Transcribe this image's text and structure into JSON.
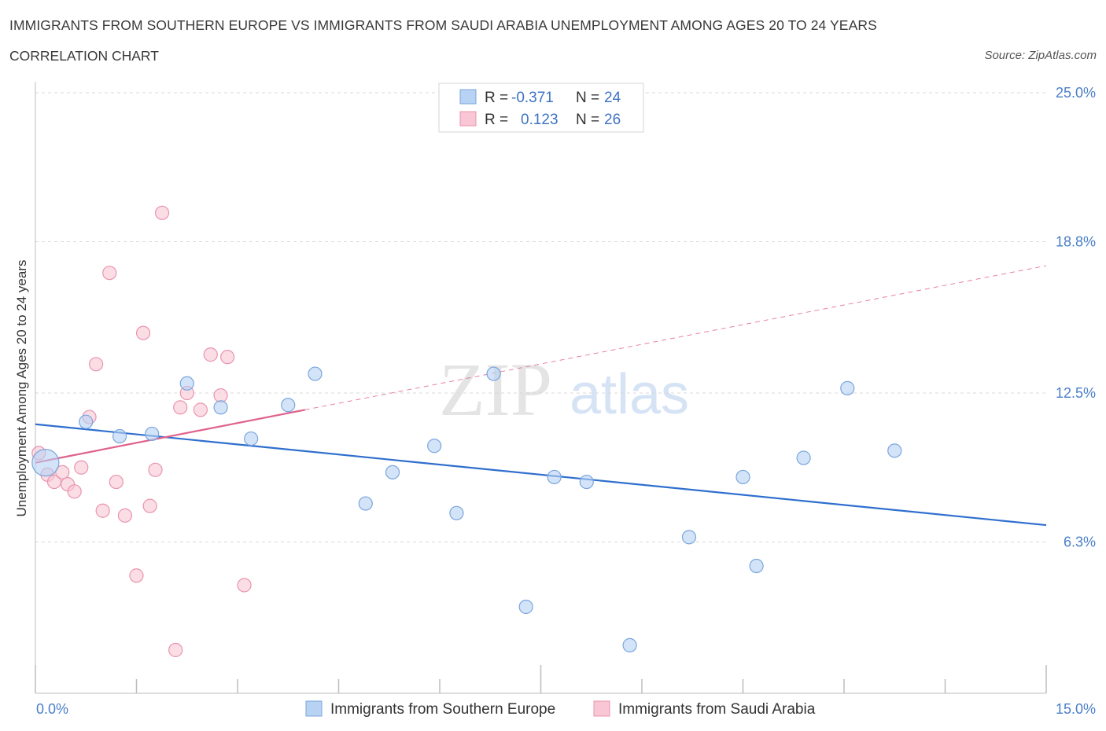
{
  "header": {
    "title": "IMMIGRANTS FROM SOUTHERN EUROPE VS IMMIGRANTS FROM SAUDI ARABIA UNEMPLOYMENT AMONG AGES 20 TO 24 YEARS",
    "subtitle": "CORRELATION CHART",
    "source": "Source: ZipAtlas.com"
  },
  "watermark": {
    "zip": "ZIP",
    "atlas": "atlas"
  },
  "colors": {
    "blue_fill": "#b8d2f3",
    "blue_stroke": "#7aa6dd",
    "blue_line": "#2f6fce",
    "pink_fill": "#f8c6d4",
    "pink_stroke": "#e994ae",
    "pink_line": "#e0628c",
    "tick_text": "#4a7fc9",
    "grid": "#d9d9d9"
  },
  "legend": {
    "rows": [
      {
        "r_label": "R =",
        "r_value": "-0.371",
        "n_label": "N =",
        "n_value": "24"
      },
      {
        "r_label": "R =",
        "r_value": "0.123",
        "n_label": "N =",
        "n_value": "26"
      }
    ]
  },
  "chart_data": {
    "type": "scatter",
    "title": "IMMIGRANTS FROM SOUTHERN EUROPE VS IMMIGRANTS FROM SAUDI ARABIA UNEMPLOYMENT AMONG AGES 20 TO 24 YEARS",
    "subtitle": "CORRELATION CHART",
    "xlabel": "",
    "ylabel": "Unemployment Among Ages 20 to 24 years",
    "xlim": [
      0,
      15
    ],
    "ylim": [
      0,
      25
    ],
    "x_tick_labels": [
      "0.0%",
      "15.0%"
    ],
    "y_ticks": [
      6.3,
      12.5,
      18.8,
      25.0
    ],
    "y_tick_labels": [
      "6.3%",
      "12.5%",
      "18.8%",
      "25.0%"
    ],
    "grid": true,
    "legend_position": "top-center",
    "series": [
      {
        "name": "Immigrants from Southern Europe",
        "color": "blue",
        "R": -0.371,
        "N": 24,
        "trend": {
          "x": [
            0.0,
            15.0
          ],
          "y": [
            11.2,
            7.0
          ],
          "dashed_extension": false
        },
        "points": [
          {
            "x": 0.15,
            "y": 9.6,
            "size": "large"
          },
          {
            "x": 0.75,
            "y": 11.3
          },
          {
            "x": 1.25,
            "y": 10.7
          },
          {
            "x": 1.73,
            "y": 10.8
          },
          {
            "x": 2.25,
            "y": 12.9
          },
          {
            "x": 2.75,
            "y": 11.9
          },
          {
            "x": 3.2,
            "y": 10.6
          },
          {
            "x": 3.75,
            "y": 12.0
          },
          {
            "x": 4.15,
            "y": 13.3
          },
          {
            "x": 4.9,
            "y": 7.9
          },
          {
            "x": 5.3,
            "y": 9.2
          },
          {
            "x": 5.92,
            "y": 10.3
          },
          {
            "x": 6.25,
            "y": 7.5
          },
          {
            "x": 6.8,
            "y": 13.3
          },
          {
            "x": 7.28,
            "y": 3.6
          },
          {
            "x": 7.7,
            "y": 9.0
          },
          {
            "x": 8.18,
            "y": 8.8
          },
          {
            "x": 8.82,
            "y": 2.0
          },
          {
            "x": 9.7,
            "y": 6.5
          },
          {
            "x": 10.5,
            "y": 9.0
          },
          {
            "x": 10.7,
            "y": 5.3
          },
          {
            "x": 11.4,
            "y": 9.8
          },
          {
            "x": 12.05,
            "y": 12.7
          },
          {
            "x": 12.75,
            "y": 10.1
          }
        ]
      },
      {
        "name": "Immigrants from Saudi Arabia",
        "color": "pink",
        "R": 0.123,
        "N": 26,
        "trend": {
          "x": [
            0.0,
            4.0
          ],
          "y": [
            9.6,
            11.8
          ],
          "dashed_extension_to": [
            15.0,
            17.8
          ]
        },
        "points": [
          {
            "x": 0.05,
            "y": 10.0
          },
          {
            "x": 0.18,
            "y": 9.1
          },
          {
            "x": 0.28,
            "y": 8.8
          },
          {
            "x": 0.4,
            "y": 9.2
          },
          {
            "x": 0.48,
            "y": 8.7
          },
          {
            "x": 0.58,
            "y": 8.4
          },
          {
            "x": 0.68,
            "y": 9.4
          },
          {
            "x": 0.8,
            "y": 11.5
          },
          {
            "x": 0.9,
            "y": 13.7
          },
          {
            "x": 1.0,
            "y": 7.6
          },
          {
            "x": 1.1,
            "y": 17.5
          },
          {
            "x": 1.2,
            "y": 8.8
          },
          {
            "x": 1.33,
            "y": 7.4
          },
          {
            "x": 1.5,
            "y": 4.9
          },
          {
            "x": 1.6,
            "y": 15.0
          },
          {
            "x": 1.7,
            "y": 7.8
          },
          {
            "x": 1.78,
            "y": 9.3
          },
          {
            "x": 1.88,
            "y": 20.0
          },
          {
            "x": 2.08,
            "y": 1.8
          },
          {
            "x": 2.15,
            "y": 11.9
          },
          {
            "x": 2.25,
            "y": 12.5
          },
          {
            "x": 2.45,
            "y": 11.8
          },
          {
            "x": 2.6,
            "y": 14.1
          },
          {
            "x": 2.75,
            "y": 12.4
          },
          {
            "x": 2.85,
            "y": 14.0
          },
          {
            "x": 3.1,
            "y": 4.5
          }
        ]
      }
    ]
  },
  "bottom_legend": {
    "items": [
      {
        "label": "Immigrants from Southern Europe"
      },
      {
        "label": "Immigrants from Saudi Arabia"
      }
    ]
  }
}
